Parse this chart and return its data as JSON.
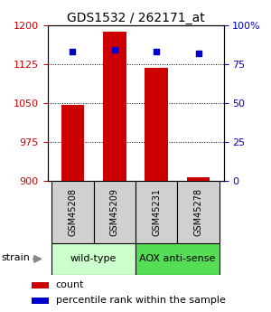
{
  "title": "GDS1532 / 262171_at",
  "samples": [
    "GSM45208",
    "GSM45209",
    "GSM45231",
    "GSM45278"
  ],
  "counts": [
    1047,
    1187,
    1118,
    907
  ],
  "percentiles": [
    83,
    84,
    83,
    82
  ],
  "ylim_left": [
    900,
    1200
  ],
  "ylim_right": [
    0,
    100
  ],
  "yticks_left": [
    900,
    975,
    1050,
    1125,
    1200
  ],
  "yticks_right": [
    0,
    25,
    50,
    75,
    100
  ],
  "ytick_labels_left": [
    "900",
    "975",
    "1050",
    "1125",
    "1200"
  ],
  "ytick_labels_right": [
    "0",
    "25",
    "50",
    "75",
    "100%"
  ],
  "bar_color": "#cc0000",
  "dot_color": "#0000cc",
  "group_info": [
    {
      "label": "wild-type",
      "start": 0,
      "end": 1,
      "color": "#ccffcc"
    },
    {
      "label": "AOX anti-sense",
      "start": 2,
      "end": 3,
      "color": "#55dd55"
    }
  ],
  "strain_label": "strain",
  "legend_count": "count",
  "legend_percentile": "percentile rank within the sample",
  "title_fontsize": 10,
  "tick_fontsize": 8,
  "sample_fontsize": 7,
  "group_fontsize": 8,
  "legend_fontsize": 8
}
